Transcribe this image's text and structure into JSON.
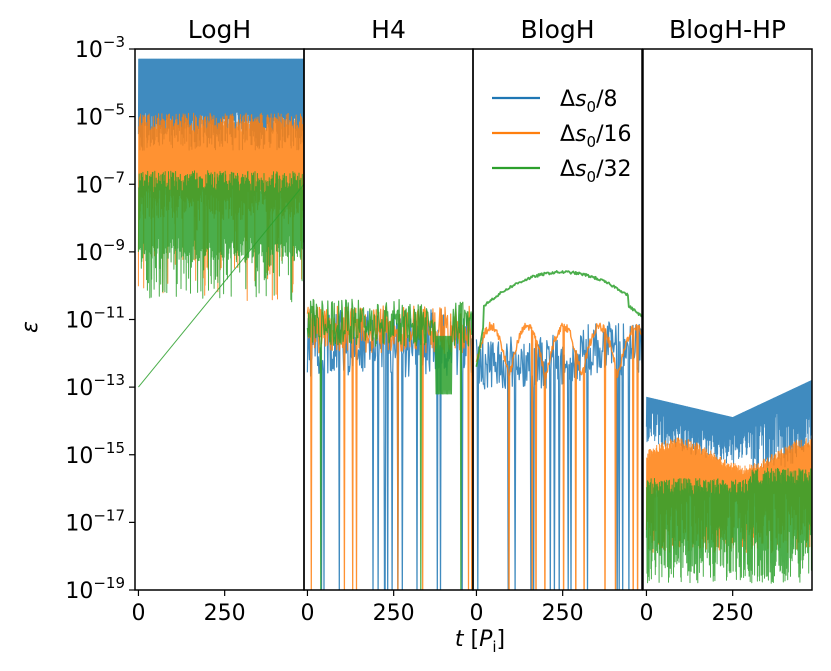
{
  "chart_data": {
    "type": "line",
    "ylabel": "ε",
    "xlabel_var": "t",
    "xlabel_unit_open": "[",
    "xlabel_unit": "P",
    "xlabel_unit_sub": "i",
    "xlabel_unit_close": "]",
    "yscale": "log",
    "ylim_exp": [
      -19,
      -3
    ],
    "ytick_base": "10",
    "ytick_exponents": [
      "−3",
      "−5",
      "−7",
      "−9",
      "−11",
      "−13",
      "−15",
      "−17",
      "−19"
    ],
    "xlim": [
      -10,
      480
    ],
    "xtick_labels": [
      "0",
      "250"
    ],
    "xticks": [
      0,
      250
    ],
    "legend": {
      "location": "upper-right of BlogH panel",
      "entries": [
        {
          "prefix": "Δ",
          "var": "s",
          "sub": "0",
          "suffix": "/8",
          "color": "#1f77b4"
        },
        {
          "prefix": "Δ",
          "var": "s",
          "sub": "0",
          "suffix": "/16",
          "color": "#ff7f0e"
        },
        {
          "prefix": "Δ",
          "var": "s",
          "sub": "0",
          "suffix": "/32",
          "color": "#2ca02c"
        }
      ]
    },
    "panels": [
      {
        "title": "LogH",
        "series": [
          {
            "name": "Δs0/8",
            "t": [
              0,
              480
            ],
            "log10_eps_upper": -3.3,
            "log10_eps_lower": -6.0,
            "note": "dense oscillation band"
          },
          {
            "name": "Δs0/16",
            "t": [
              0,
              480
            ],
            "log10_eps_upper": -4.9,
            "log10_eps_lower": -10.5
          },
          {
            "name": "Δs0/32",
            "t": [
              0,
              480
            ],
            "log10_eps_upper": -6.6,
            "log10_eps_lower": -10.5
          }
        ]
      },
      {
        "title": "H4",
        "series": [
          {
            "name": "Δs0/8",
            "t": [
              0,
              480
            ],
            "log10_eps_typical": -11.7,
            "note": "noisy with dips to below -19"
          },
          {
            "name": "Δs0/16",
            "t": [
              0,
              480
            ],
            "log10_eps_typical": -11.3
          },
          {
            "name": "Δs0/32",
            "t": [
              0,
              480
            ],
            "log10_eps_typical": -11.1
          }
        ]
      },
      {
        "title": "BlogH",
        "series": [
          {
            "name": "Δs0/8",
            "t": [
              0,
              480
            ],
            "log10_eps_typical": -12.2,
            "note": "noisy with deep dips"
          },
          {
            "name": "Δs0/16",
            "t": [
              0,
              480
            ],
            "log10_eps_typical": -11.3,
            "note": "arches"
          },
          {
            "name": "Δs0/32",
            "t": [
              0,
              250,
              480
            ],
            "log10_eps": [
              -11.2,
              -9.6,
              -10.2
            ]
          }
        ]
      },
      {
        "title": "BlogH-HP",
        "series": [
          {
            "name": "Δs0/8",
            "t": [
              0,
              250,
              480
            ],
            "log10_eps_upper": [
              -13.3,
              -13.9,
              -12.8
            ]
          },
          {
            "name": "Δs0/16",
            "t": [
              0,
              480
            ],
            "log10_eps_upper": -14.9,
            "log10_eps_lower": -17.7
          },
          {
            "name": "Δs0/32",
            "t": [
              0,
              480
            ],
            "log10_eps_upper": -15.7,
            "log10_eps_lower": -18.5
          }
        ]
      }
    ]
  }
}
